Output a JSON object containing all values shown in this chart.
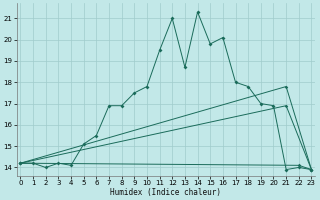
{
  "xlabel": "Humidex (Indice chaleur)",
  "bg_color": "#c2e8e8",
  "grid_color": "#a0cccc",
  "line_color": "#1a6b5a",
  "x_ticks": [
    0,
    1,
    2,
    3,
    4,
    5,
    6,
    7,
    8,
    9,
    10,
    11,
    12,
    13,
    14,
    15,
    16,
    17,
    18,
    19,
    20,
    21,
    22,
    23
  ],
  "y_ticks": [
    14,
    15,
    16,
    17,
    18,
    19,
    20,
    21
  ],
  "ylim": [
    13.6,
    21.7
  ],
  "xlim": [
    -0.3,
    23.3
  ],
  "main_series": {
    "x": [
      0,
      1,
      2,
      3,
      4,
      5,
      6,
      7,
      8,
      9,
      10,
      11,
      12,
      13,
      14,
      15,
      16,
      17,
      18,
      19,
      20,
      21,
      22,
      23
    ],
    "y": [
      14.2,
      14.2,
      14.0,
      14.2,
      14.1,
      15.1,
      15.5,
      16.9,
      16.9,
      17.5,
      17.8,
      19.5,
      21.0,
      18.7,
      21.3,
      19.8,
      20.1,
      18.0,
      17.8,
      17.0,
      16.9,
      13.9,
      14.0,
      13.9
    ]
  },
  "trend_lines": [
    {
      "x": [
        0,
        21,
        23
      ],
      "y": [
        14.2,
        17.8,
        13.9
      ]
    },
    {
      "x": [
        0,
        21,
        23
      ],
      "y": [
        14.2,
        16.9,
        13.9
      ]
    },
    {
      "x": [
        0,
        22,
        23
      ],
      "y": [
        14.2,
        14.1,
        13.9
      ]
    }
  ]
}
